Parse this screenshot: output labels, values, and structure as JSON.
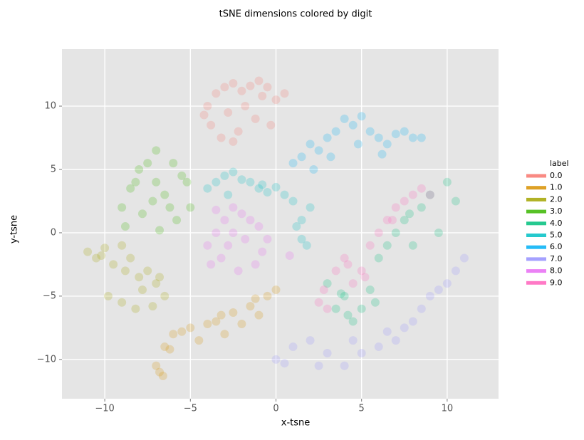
{
  "chart_data": {
    "type": "scatter",
    "title": "tSNE dimensions colored by digit",
    "x_label": "x-tsne",
    "y_label": "y-tsne",
    "legend_title": "label",
    "grid": true,
    "xlim": [
      -12.5,
      13.0
    ],
    "ylim": [
      -13.1,
      14.5
    ],
    "xticks": [
      {
        "value": -10,
        "label": "−10"
      },
      {
        "value": -5,
        "label": "−5"
      },
      0,
      5,
      10
    ],
    "yticks": [
      {
        "value": -10,
        "label": "−10"
      },
      {
        "value": -5,
        "label": "−5"
      },
      0,
      5,
      10
    ],
    "series": [
      {
        "name": "0.0",
        "color": "#F8766D",
        "x": [
          -4,
          -3.5,
          -3,
          -2.5,
          -2,
          -1.5,
          -1,
          -0.5,
          0,
          -3.8,
          -3.2,
          -2.2,
          -1.2,
          -0.3,
          -2.8,
          -1.8,
          -0.8,
          0.5,
          -4.2,
          -2.5
        ],
        "values": [
          10,
          11,
          11.5,
          11.8,
          11.2,
          11.6,
          12,
          11.5,
          10.5,
          8.5,
          7.5,
          8,
          9,
          8.5,
          9.5,
          10,
          10.8,
          11,
          9.3,
          7.2
        ]
      },
      {
        "name": "1.0",
        "color": "#D89000",
        "x": [
          -7,
          -6.8,
          -6.5,
          -6,
          -5.5,
          -5,
          -4.5,
          -4,
          -3.5,
          -3,
          -2.5,
          -2,
          -1.5,
          -1,
          -0.5,
          0,
          -6.6,
          -6.2,
          -3.2,
          -1.2
        ],
        "values": [
          -10.5,
          -11,
          -9,
          -8,
          -7.8,
          -7.5,
          -8.5,
          -7.2,
          -7,
          -8,
          -6.3,
          -7.2,
          -5.8,
          -6.5,
          -5,
          -4.5,
          -11.3,
          -9.2,
          -6.5,
          -5.2
        ]
      },
      {
        "name": "2.0",
        "color": "#A3A500",
        "x": [
          -11,
          -10.5,
          -10,
          -9.5,
          -9,
          -8.5,
          -8,
          -7.5,
          -7,
          -6.5,
          -9.8,
          -9,
          -8.2,
          -7.8,
          -6.8,
          -10.2,
          -8.8,
          -7.2
        ],
        "values": [
          -1.5,
          -2,
          -1.2,
          -2.5,
          -1,
          -2,
          -3.5,
          -3,
          -4,
          -5,
          -5,
          -5.5,
          -6,
          -4.5,
          -3.5,
          -1.8,
          -3,
          -5.8
        ]
      },
      {
        "name": "3.0",
        "color": "#39B600",
        "x": [
          -9,
          -8.5,
          -8,
          -7.5,
          -7,
          -6.5,
          -6,
          -5.5,
          -5,
          -8.8,
          -7.8,
          -6.8,
          -5.8,
          -7.2,
          -6.2,
          -8.2,
          -5.2,
          -7
        ],
        "values": [
          2,
          3.5,
          5,
          5.5,
          4,
          3,
          5.5,
          4.5,
          2,
          0.5,
          1.5,
          0.2,
          1,
          2.5,
          2,
          4,
          4,
          6.5
        ]
      },
      {
        "name": "4.0",
        "color": "#00BF7D",
        "x": [
          3,
          3.5,
          4,
          4.5,
          5,
          5.5,
          6,
          6.5,
          7,
          7.5,
          8,
          8.5,
          9,
          9.5,
          10,
          10.5,
          4.2,
          5.8,
          7.8,
          3.8
        ],
        "values": [
          -4,
          -6,
          -5,
          -7,
          -6,
          -4.5,
          -2,
          -1,
          0,
          1,
          -1,
          2,
          3,
          0,
          4,
          2.5,
          -6.5,
          -5.5,
          1.5,
          -4.8
        ]
      },
      {
        "name": "5.0",
        "color": "#00BFC4",
        "x": [
          -4,
          -3.5,
          -3,
          -2.5,
          -2,
          -1.5,
          -1,
          -0.5,
          0,
          0.5,
          1,
          1.5,
          2,
          1.5,
          1.8,
          -2.8,
          -0.8,
          1.2
        ],
        "values": [
          3.5,
          4,
          4.5,
          4.8,
          4.2,
          4,
          3.5,
          3.2,
          3.6,
          3,
          2.5,
          1,
          2,
          -0.5,
          -1,
          3,
          3.8,
          0.5
        ]
      },
      {
        "name": "6.0",
        "color": "#00B0F6",
        "x": [
          1,
          1.5,
          2,
          2.5,
          3,
          3.5,
          4,
          4.5,
          5,
          5.5,
          6,
          6.5,
          7,
          7.5,
          8,
          8.5,
          3.2,
          4.8,
          6.2,
          2.2
        ],
        "values": [
          5.5,
          6,
          7,
          6.5,
          7.5,
          8,
          9,
          8.5,
          9.2,
          8,
          7.5,
          7,
          7.8,
          8,
          7.5,
          7.5,
          6,
          7,
          6.2,
          5
        ]
      },
      {
        "name": "7.0",
        "color": "#9590FF",
        "x": [
          0,
          0.5,
          1,
          2,
          3,
          4,
          5,
          6,
          7,
          8,
          8.5,
          9,
          9.5,
          10,
          10.5,
          11,
          4.5,
          7.5,
          2.5,
          6.5
        ],
        "values": [
          -10,
          -10.3,
          -9,
          -8.5,
          -9.5,
          -10.5,
          -9.5,
          -9,
          -8.5,
          -7,
          -6,
          -5,
          -4.5,
          -4,
          -3,
          -2,
          -8.5,
          -7.5,
          -10.5,
          -7.8
        ]
      },
      {
        "name": "8.0",
        "color": "#E76BF3",
        "x": [
          -4,
          -3.5,
          -3,
          -2.5,
          -2,
          -1.5,
          -1,
          -0.5,
          -3.8,
          -3.2,
          -2.2,
          -1.2,
          -2.8,
          -1.8,
          -0.8,
          -2.5,
          0.8,
          -3.5
        ],
        "values": [
          -1,
          0,
          1,
          2,
          1.5,
          1,
          0.5,
          -0.5,
          -2.5,
          -2,
          -3,
          -2.5,
          -1,
          -0.5,
          -1.5,
          0,
          -1.8,
          1.8
        ]
      },
      {
        "name": "9.0",
        "color": "#FF62BC",
        "x": [
          2.5,
          3,
          3.5,
          4,
          4.5,
          5,
          5.5,
          6,
          6.5,
          7,
          7.5,
          8,
          8.5,
          9,
          2.8,
          4.2,
          5.2,
          6.8
        ],
        "values": [
          -5.5,
          -6,
          -3,
          -2,
          -4,
          -3,
          -1,
          0,
          1,
          2,
          2.5,
          3,
          3.5,
          3,
          -4.5,
          -2.5,
          -3.5,
          1
        ]
      }
    ]
  }
}
